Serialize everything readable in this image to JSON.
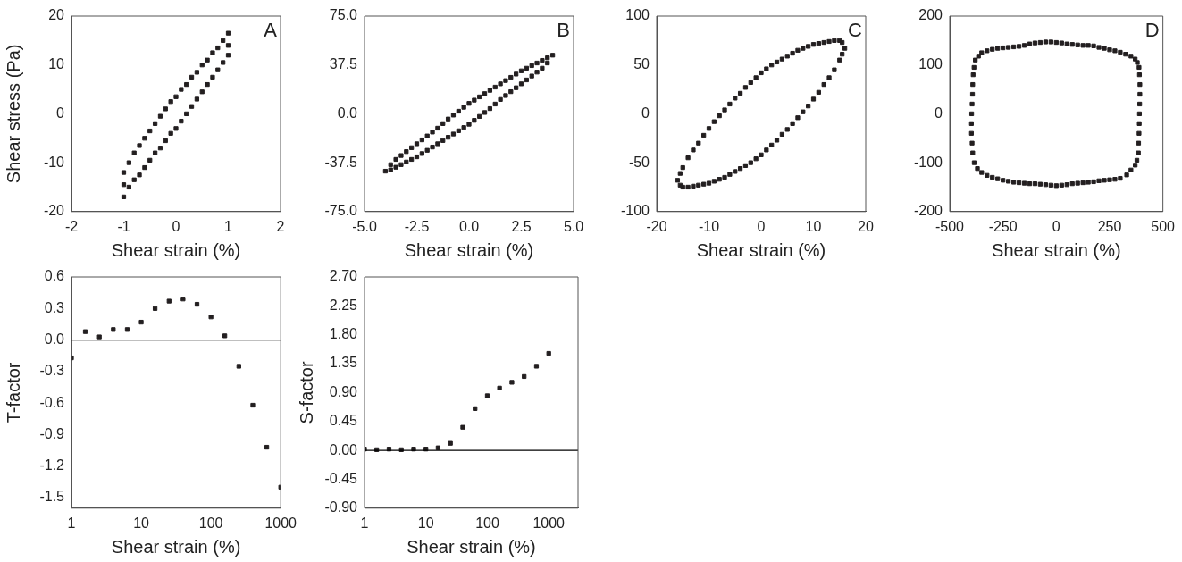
{
  "chart_data": [
    {
      "type": "scatter",
      "xlabel": "Shear strain (%)",
      "ylabel": "Shear stress (Pa)",
      "annotations": [
        "A"
      ],
      "marker": "square",
      "grid": false,
      "color": "#231f20",
      "xlim": [
        -2,
        2
      ],
      "xticks": [
        -2,
        -1,
        0,
        1,
        2
      ],
      "ylim": [
        -20,
        20
      ],
      "yticks": [
        -20,
        -10,
        0,
        10,
        20
      ],
      "x": [
        -1,
        -0.9,
        -0.8,
        -0.7,
        -0.6,
        -0.5,
        -0.4,
        -0.3,
        -0.2,
        -0.1,
        0,
        0.1,
        0.2,
        0.3,
        0.4,
        0.5,
        0.6,
        0.7,
        0.8,
        0.9,
        1,
        1,
        1,
        0.9,
        0.8,
        0.7,
        0.6,
        0.5,
        0.4,
        0.3,
        0.2,
        0.1,
        0,
        -0.1,
        -0.2,
        -0.3,
        -0.4,
        -0.5,
        -0.6,
        -0.7,
        -0.8,
        -0.9,
        -1,
        -1
      ],
      "values": [
        -12,
        -10,
        -8,
        -6.5,
        -5,
        -3.5,
        -2,
        -0.5,
        1,
        2.5,
        3.5,
        5,
        6,
        7.5,
        8.5,
        10,
        11,
        12.5,
        13.5,
        15,
        16.5,
        14,
        12,
        10.5,
        9,
        7.5,
        6,
        4.5,
        3,
        1.5,
        0,
        -1.5,
        -3,
        -4,
        -5.5,
        -7,
        -8,
        -9.5,
        -11,
        -12.5,
        -13.5,
        -15,
        -17,
        -14.5
      ]
    },
    {
      "type": "scatter",
      "xlabel": "Shear strain (%)",
      "annotations": [
        "B"
      ],
      "marker": "square",
      "grid": false,
      "color": "#231f20",
      "xlim": [
        -5,
        5
      ],
      "xticks": [
        {
          "value": -5,
          "label": "-5.0"
        },
        {
          "value": -2.5,
          "label": "-2.5"
        },
        {
          "value": 0,
          "label": "0.0"
        },
        {
          "value": 2.5,
          "label": "2.5"
        },
        {
          "value": 5,
          "label": "5.0"
        }
      ],
      "ylim": [
        -75,
        75
      ],
      "yticks": [
        {
          "value": -75,
          "label": "-75.0"
        },
        {
          "value": -37.5,
          "label": "-37.5"
        },
        {
          "value": 0,
          "label": "0.0"
        },
        {
          "value": 37.5,
          "label": "37.5"
        },
        {
          "value": 75,
          "label": "75.0"
        }
      ],
      "x": [
        -4,
        -3.75,
        -3.5,
        -3.25,
        -3,
        -2.75,
        -2.5,
        -2.25,
        -2,
        -1.75,
        -1.5,
        -1.25,
        -1,
        -0.75,
        -0.5,
        -0.25,
        0,
        0.25,
        0.5,
        0.75,
        1,
        1.25,
        1.5,
        1.75,
        2,
        2.25,
        2.5,
        2.75,
        3,
        3.25,
        3.5,
        3.75,
        4,
        3.75,
        3.5,
        3.25,
        3,
        2.75,
        2.5,
        2.25,
        2,
        1.75,
        1.5,
        1.25,
        1,
        0.75,
        0.5,
        0.25,
        0,
        -0.25,
        -0.5,
        -0.75,
        -1,
        -1.25,
        -1.5,
        -1.75,
        -2,
        -2.25,
        -2.5,
        -2.75,
        -3,
        -3.25,
        -3.5,
        -3.75
      ],
      "values": [
        -44,
        -39,
        -35,
        -32,
        -29,
        -26,
        -23,
        -20,
        -17,
        -14,
        -11,
        -7.5,
        -4,
        -1,
        2,
        5,
        8,
        10.5,
        13,
        15.5,
        18,
        20.5,
        23,
        25.5,
        28,
        30.5,
        33,
        35,
        37,
        39,
        41,
        43,
        45,
        39,
        35,
        32,
        29,
        26,
        23,
        20,
        17,
        14,
        11,
        7.5,
        4,
        1,
        -2,
        -5,
        -8,
        -10.5,
        -13,
        -15.5,
        -18,
        -20.5,
        -23,
        -25.5,
        -28,
        -30.5,
        -33,
        -35,
        -37,
        -39,
        -41,
        -43
      ]
    },
    {
      "type": "scatter",
      "xlabel": "Shear strain (%)",
      "annotations": [
        "C"
      ],
      "marker": "square",
      "grid": false,
      "color": "#231f20",
      "xlim": [
        -20,
        20
      ],
      "xticks": [
        -20,
        -10,
        0,
        10,
        20
      ],
      "ylim": [
        -100,
        100
      ],
      "yticks": [
        -100,
        -50,
        0,
        50,
        100
      ],
      "x": [
        -16,
        -15.5,
        -15,
        -14,
        -13,
        -12,
        -11,
        -10,
        -9,
        -8,
        -7,
        -6,
        -5,
        -4,
        -3,
        -2,
        -1,
        0,
        1,
        2,
        3,
        4,
        5,
        6,
        7,
        8,
        9,
        10,
        11,
        12,
        13,
        14,
        15,
        15.5,
        16,
        15.5,
        15,
        14,
        13,
        12,
        11,
        10,
        9,
        8,
        7,
        6,
        5,
        4,
        3,
        2,
        1,
        0,
        -1,
        -2,
        -3,
        -4,
        -5,
        -6,
        -7,
        -8,
        -9,
        -10,
        -11,
        -12,
        -13,
        -14,
        -15,
        -15.5
      ],
      "values": [
        -68,
        -61,
        -55,
        -45,
        -37,
        -30,
        -22,
        -15,
        -8,
        -2,
        4,
        10,
        16,
        21,
        27,
        32,
        37,
        42,
        46,
        50,
        53,
        56,
        59,
        62,
        65,
        67,
        69,
        71,
        72,
        73,
        74,
        75,
        75,
        73,
        67,
        61,
        55,
        45,
        37,
        30,
        22,
        15,
        8,
        2,
        -4,
        -10,
        -16,
        -21,
        -27,
        -32,
        -37,
        -42,
        -46,
        -50,
        -53,
        -56,
        -59,
        -62,
        -65,
        -67,
        -69,
        -71,
        -72,
        -73,
        -74,
        -75,
        -75,
        -73
      ]
    },
    {
      "type": "scatter",
      "xlabel": "Shear strain (%)",
      "annotations": [
        "D"
      ],
      "marker": "square",
      "grid": false,
      "color": "#231f20",
      "xlim": [
        -500,
        500
      ],
      "xticks": [
        -500,
        -250,
        0,
        250,
        500
      ],
      "ylim": [
        -200,
        200
      ],
      "yticks": [
        -200,
        -100,
        0,
        100,
        200
      ],
      "x": [
        -380,
        -365,
        -350,
        -325,
        -300,
        -275,
        -250,
        -225,
        -200,
        -175,
        -150,
        -125,
        -100,
        -75,
        -50,
        -25,
        0,
        25,
        50,
        75,
        100,
        125,
        150,
        175,
        200,
        225,
        250,
        275,
        300,
        325,
        350,
        370,
        380,
        388,
        390,
        392,
        392,
        391,
        390,
        389,
        388,
        386,
        385,
        378,
        370,
        350,
        330,
        300,
        275,
        250,
        225,
        200,
        175,
        150,
        125,
        100,
        75,
        50,
        25,
        0,
        -25,
        -50,
        -75,
        -100,
        -125,
        -150,
        -175,
        -200,
        -225,
        -250,
        -275,
        -300,
        -325,
        -350,
        -370,
        -385,
        -392,
        -395,
        -398,
        -398,
        -397,
        -395,
        -393,
        -392,
        -390,
        -386
      ],
      "values": [
        110,
        118,
        125,
        129,
        132,
        134,
        135,
        136,
        137,
        138,
        140,
        143,
        145,
        146,
        147,
        147,
        146,
        145,
        143,
        142,
        141,
        140,
        140,
        139,
        136,
        134,
        131,
        129,
        126,
        122,
        118,
        112,
        105,
        95,
        80,
        60,
        40,
        20,
        0,
        -20,
        -40,
        -60,
        -80,
        -95,
        -105,
        -115,
        -125,
        -132,
        -134,
        -135,
        -136,
        -137,
        -139,
        -140,
        -141,
        -142,
        -143,
        -145,
        -146,
        -147,
        -146,
        -145,
        -144,
        -143,
        -143,
        -142,
        -141,
        -140,
        -138,
        -136,
        -133,
        -130,
        -126,
        -120,
        -112,
        -100,
        -80,
        -60,
        -40,
        -20,
        0,
        20,
        40,
        60,
        80,
        95
      ]
    },
    {
      "type": "scatter",
      "xlabel": "Shear strain (%)",
      "ylabel": "T-factor",
      "marker": "square",
      "grid": false,
      "log": "x",
      "color": "#231f20",
      "xlim": [
        1,
        1000
      ],
      "xticks": [
        1,
        10,
        100,
        1000
      ],
      "ylim": [
        -1.6,
        0.6
      ],
      "yticks": [
        0.6,
        0.3,
        {
          "value": 0,
          "label": "0.0"
        },
        -0.3,
        -0.6,
        -0.9,
        -1.2,
        -1.5
      ],
      "ref_lines": [
        {
          "axis": "y",
          "value": 0,
          "color": "#000000"
        }
      ],
      "x": [
        1,
        1.58,
        2.51,
        3.98,
        6.31,
        10,
        15.8,
        25.1,
        39.8,
        63.1,
        100,
        158,
        251,
        398,
        631,
        1000
      ],
      "values": [
        -0.17,
        0.08,
        0.03,
        0.1,
        0.1,
        0.17,
        0.3,
        0.37,
        0.39,
        0.34,
        0.22,
        0.04,
        -0.25,
        -0.62,
        -1.02,
        -1.4
      ]
    },
    {
      "type": "scatter",
      "xlabel": "Shear strain (%)",
      "ylabel": "S-factor",
      "marker": "square",
      "grid": false,
      "log": "x",
      "color": "#231f20",
      "xlim": [
        1,
        3000
      ],
      "xticks": [
        1,
        10,
        100,
        1000
      ],
      "ylim": [
        -0.9,
        2.7
      ],
      "yticks": [
        {
          "value": -0.9,
          "label": "-0.90"
        },
        -0.45,
        {
          "value": 0,
          "label": "0.00"
        },
        0.45,
        {
          "value": 0.9,
          "label": "0.90"
        },
        1.35,
        {
          "value": 1.8,
          "label": "1.80"
        },
        2.25,
        {
          "value": 2.7,
          "label": "2.70"
        }
      ],
      "ref_lines": [
        {
          "axis": "y",
          "value": 0,
          "color": "#000000"
        }
      ],
      "x": [
        1,
        1.58,
        2.51,
        3.98,
        6.31,
        10,
        15.8,
        25.1,
        39.8,
        63.1,
        100,
        158,
        251,
        398,
        631,
        1000
      ],
      "values": [
        0.02,
        0.01,
        0.02,
        0.01,
        0.02,
        0.02,
        0.04,
        0.11,
        0.36,
        0.65,
        0.85,
        0.97,
        1.06,
        1.15,
        1.31,
        1.51
      ]
    }
  ]
}
